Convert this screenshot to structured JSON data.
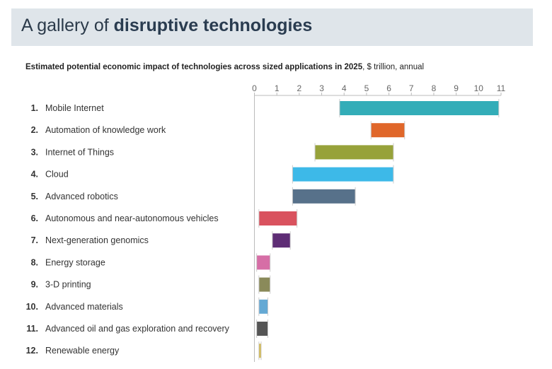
{
  "header": {
    "title_prefix": "A gallery of ",
    "title_bold": "disruptive technologies"
  },
  "chart_data": {
    "type": "bar",
    "orientation": "horizontal-range",
    "title": "Estimated potential economic impact of technologies across sized applications in 2025",
    "subtitle_units": ", $ trillion, annual",
    "xlim": [
      0,
      11
    ],
    "xticks": [
      0,
      1,
      2,
      3,
      4,
      5,
      6,
      7,
      8,
      9,
      10,
      11
    ],
    "categories": [
      "Mobile Internet",
      "Automation of knowledge work",
      "Internet of Things",
      "Cloud",
      "Advanced robotics",
      "Autonomous and near-autonomous vehicles",
      "Next-generation genomics",
      "Energy storage",
      "3-D printing",
      "Advanced materials",
      "Advanced oil and gas exploration and recovery",
      "Renewable energy"
    ],
    "ranks": [
      "1.",
      "2.",
      "3.",
      "4.",
      "5.",
      "6.",
      "7.",
      "8.",
      "9.",
      "10.",
      "11.",
      "12."
    ],
    "low": [
      3.8,
      5.2,
      2.7,
      1.7,
      1.7,
      0.2,
      0.8,
      0.1,
      0.2,
      0.2,
      0.1,
      0.2
    ],
    "high": [
      10.9,
      6.7,
      6.2,
      6.2,
      4.5,
      1.9,
      1.6,
      0.7,
      0.7,
      0.6,
      0.6,
      0.3
    ],
    "colors": [
      "#33adb8",
      "#e0672a",
      "#97a23a",
      "#3db9e8",
      "#57718a",
      "#d9525e",
      "#5e2d75",
      "#d66ea6",
      "#8a8a5a",
      "#65a9d4",
      "#555555",
      "#d3b84a"
    ]
  }
}
